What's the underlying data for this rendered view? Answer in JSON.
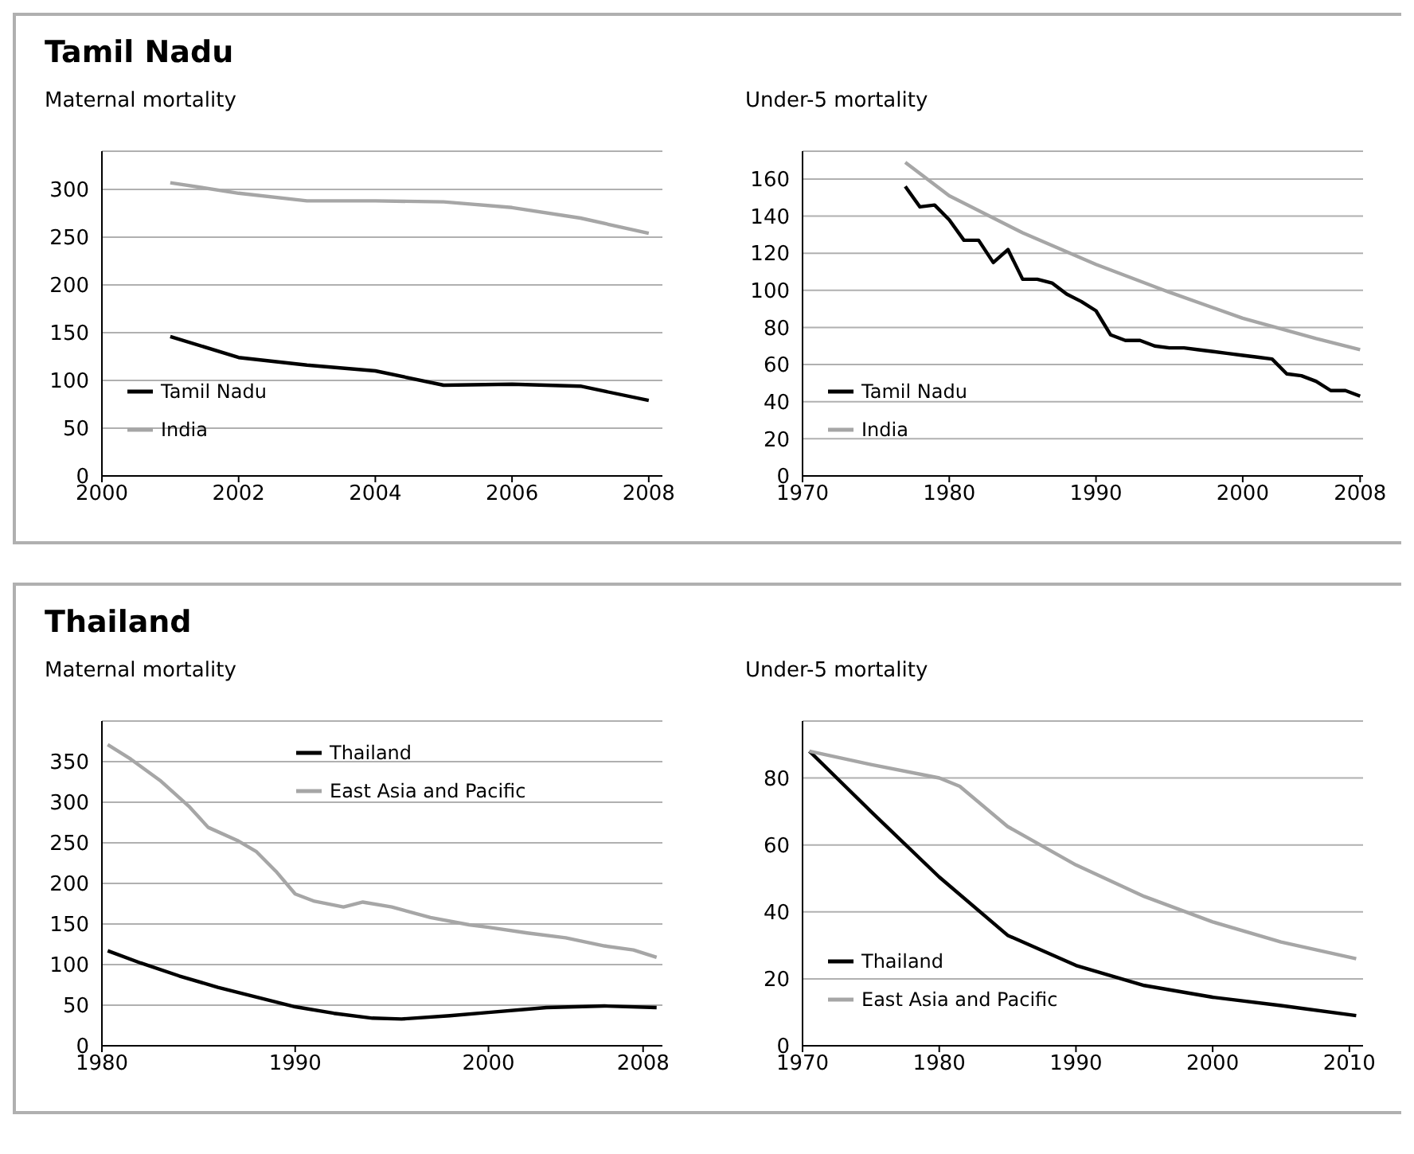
{
  "chart_data": [
    {
      "type": "line",
      "title": "Tamil Nadu",
      "subtitle": "Maternal mortality",
      "xlim": [
        2000,
        2008.2
      ],
      "xticks": [
        2000,
        2002,
        2004,
        2006,
        2008
      ],
      "ylim": [
        0,
        340
      ],
      "yticks": [
        0,
        50,
        100,
        150,
        200,
        250,
        300
      ],
      "grid": "y",
      "legend": "bottom left",
      "series": [
        {
          "name": "Tamil Nadu",
          "color": "#000000",
          "x": [
            2001,
            2002,
            2003,
            2004,
            2005,
            2006,
            2007,
            2008
          ],
          "values": [
            146,
            124,
            116,
            110,
            95,
            96,
            94,
            79
          ]
        },
        {
          "name": "India",
          "color": "#a6a6a6",
          "x": [
            2001,
            2002,
            2003,
            2004,
            2005,
            2006,
            2007,
            2008
          ],
          "values": [
            307,
            296,
            288,
            288,
            287,
            281,
            270,
            254
          ]
        }
      ]
    },
    {
      "type": "line",
      "subtitle": "Under-5 mortality",
      "xlim": [
        1970,
        2008.2
      ],
      "xticks": [
        1970,
        1980,
        1990,
        2000,
        2008
      ],
      "ylim": [
        0,
        175
      ],
      "yticks": [
        0,
        20,
        40,
        60,
        80,
        100,
        120,
        140,
        160
      ],
      "grid": "y",
      "legend": "bottom left",
      "series": [
        {
          "name": "Tamil Nadu",
          "color": "#000000",
          "x": [
            1977,
            1978,
            1979,
            1980,
            1981,
            1982,
            1983,
            1984,
            1985,
            1986,
            1987,
            1988,
            1989,
            1990,
            1991,
            1992,
            1993,
            1994,
            1995,
            1996,
            1997,
            1998,
            1999,
            2000,
            2001,
            2002,
            2003,
            2004,
            2005,
            2006,
            2007,
            2008
          ],
          "values": [
            156,
            145,
            146,
            138,
            127,
            127,
            115,
            122,
            106,
            106,
            104,
            98,
            94,
            89,
            76,
            73,
            73,
            70,
            69,
            69,
            68,
            67,
            66,
            65,
            64,
            63,
            55,
            54,
            51,
            46,
            46,
            43
          ]
        },
        {
          "name": "India",
          "color": "#a6a6a6",
          "x": [
            1977,
            1980,
            1985,
            1990,
            1995,
            2000,
            2005,
            2008
          ],
          "values": [
            169,
            151,
            131,
            114,
            99,
            85,
            74,
            68
          ]
        }
      ]
    },
    {
      "type": "line",
      "title": "Thailand",
      "subtitle": "Maternal mortality",
      "xlim": [
        1980,
        2009
      ],
      "xticks": [
        1980,
        1990,
        2000,
        2008
      ],
      "ylim": [
        0,
        400
      ],
      "yticks": [
        0,
        50,
        100,
        150,
        200,
        250,
        300,
        350
      ],
      "grid": "y",
      "legend": "top",
      "series": [
        {
          "name": "Thailand",
          "color": "#000000",
          "x": [
            1980.3,
            1982,
            1984,
            1986,
            1988,
            1990,
            1992,
            1994,
            1995.5,
            1998,
            2000,
            2003,
            2006,
            2008.7
          ],
          "values": [
            117,
            102,
            86,
            72,
            60,
            48,
            40,
            34,
            33,
            37,
            41,
            47,
            49,
            47
          ]
        },
        {
          "name": "East Asia and Pacific",
          "color": "#a6a6a6",
          "x": [
            1980.3,
            1981.5,
            1983,
            1984.5,
            1985.5,
            1987,
            1988,
            1989,
            1990,
            1991,
            1992.5,
            1993.5,
            1995,
            1997,
            1999,
            2000,
            2002,
            2004,
            2006,
            2007.5,
            2008.7
          ],
          "values": [
            371,
            353,
            327,
            295,
            269,
            253,
            239,
            215,
            187,
            178,
            171,
            177,
            171,
            158,
            149,
            146,
            139,
            133,
            123,
            118,
            109
          ]
        }
      ]
    },
    {
      "type": "line",
      "subtitle": "Under-5 mortality",
      "xlim": [
        1970,
        2011
      ],
      "xticks": [
        1970,
        1980,
        1990,
        2000,
        2010
      ],
      "ylim": [
        0,
        97
      ],
      "yticks": [
        0,
        20,
        40,
        60,
        80
      ],
      "grid": "y",
      "legend": "bottom left",
      "series": [
        {
          "name": "Thailand",
          "color": "#000000",
          "x": [
            1970.5,
            1975,
            1980,
            1985,
            1990,
            1995,
            2000,
            2005,
            2010.5
          ],
          "values": [
            88,
            70,
            50.4,
            33,
            24,
            18,
            14.5,
            12,
            9
          ]
        },
        {
          "name": "East Asia and Pacific",
          "color": "#a6a6a6",
          "x": [
            1970.5,
            1975,
            1980,
            1981.5,
            1985,
            1990,
            1995,
            2000,
            2005,
            2010.5
          ],
          "values": [
            88,
            84,
            80,
            77.5,
            65.5,
            54,
            44.6,
            37,
            31,
            26
          ]
        }
      ]
    }
  ]
}
